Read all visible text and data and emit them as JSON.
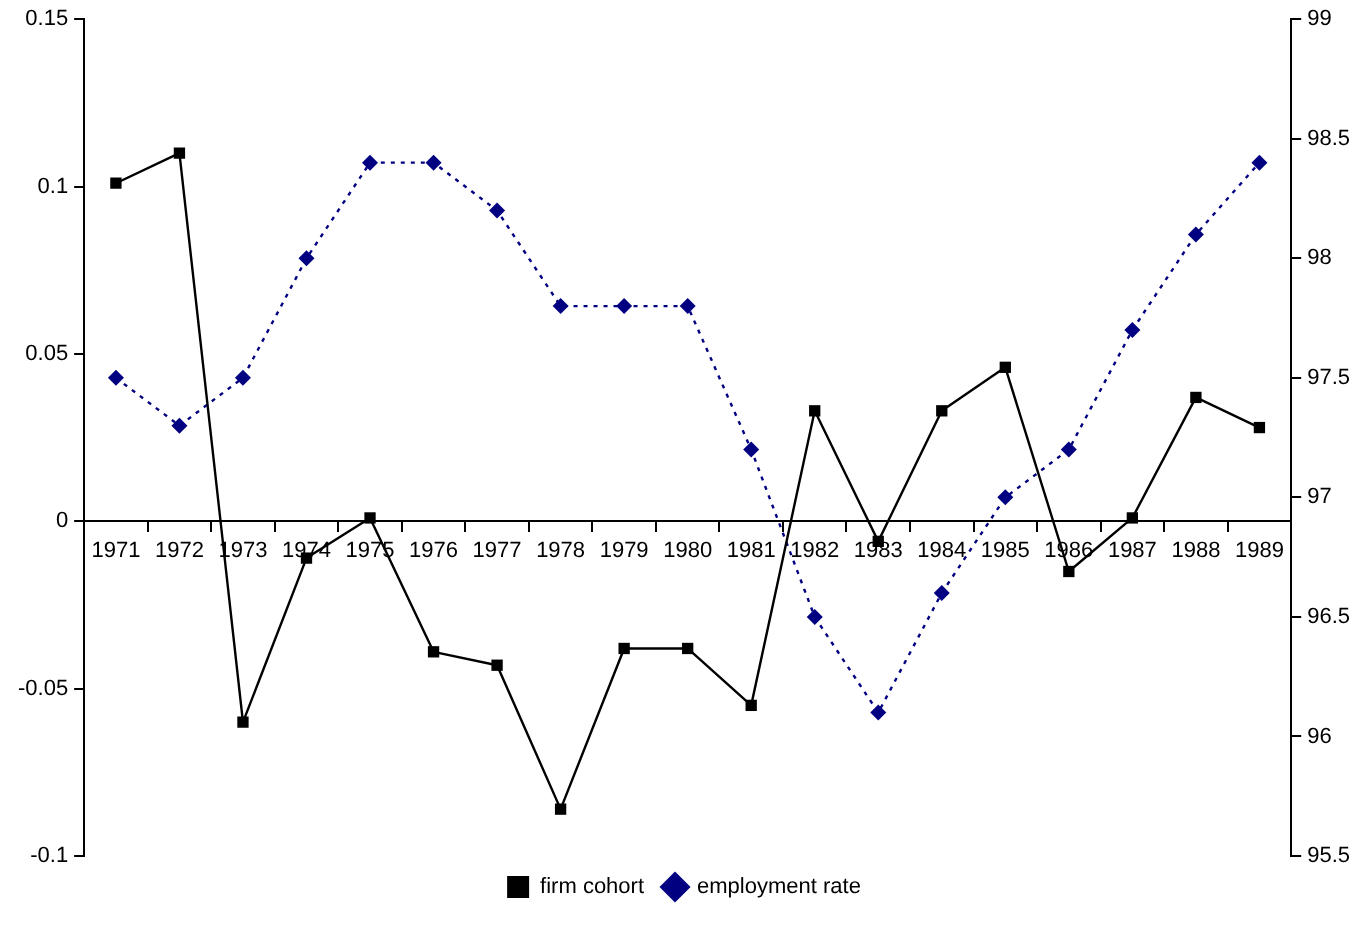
{
  "chart_data": {
    "type": "line",
    "categories": [
      "1971",
      "1972",
      "1973",
      "1974",
      "1975",
      "1976",
      "1977",
      "1978",
      "1979",
      "1980",
      "1981",
      "1982",
      "1983",
      "1984",
      "1985",
      "1986",
      "1987",
      "1988",
      "1989"
    ],
    "series": [
      {
        "name": "firm cohort",
        "color": "#000000",
        "marker": "square",
        "line_style": "solid",
        "values": [
          0.101,
          0.11,
          -0.06,
          -0.011,
          0.001,
          -0.039,
          -0.043,
          -0.086,
          -0.038,
          -0.038,
          -0.055,
          0.033,
          -0.006,
          0.033,
          0.046,
          -0.015,
          0.001,
          0.037,
          0.028
        ]
      },
      {
        "name": "employment rate",
        "color": "#000080",
        "marker": "diamond",
        "line_style": "dotted",
        "axis": "y2",
        "values": [
          97.5,
          97.3,
          97.5,
          98.0,
          98.4,
          98.4,
          98.2,
          97.8,
          97.8,
          97.8,
          97.2,
          96.5,
          96.1,
          96.6,
          97.0,
          97.2,
          97.7,
          98.1,
          98.4
        ]
      }
    ],
    "ylim": [
      -0.1,
      0.15
    ],
    "yticks": [
      -0.1,
      -0.05,
      0,
      0.05,
      0.1,
      0.15
    ],
    "y2lim": [
      95.5,
      99
    ],
    "y2ticks": [
      95.5,
      96,
      96.5,
      97,
      97.5,
      98,
      98.5,
      99
    ],
    "grid": false,
    "legend": "bottom"
  }
}
